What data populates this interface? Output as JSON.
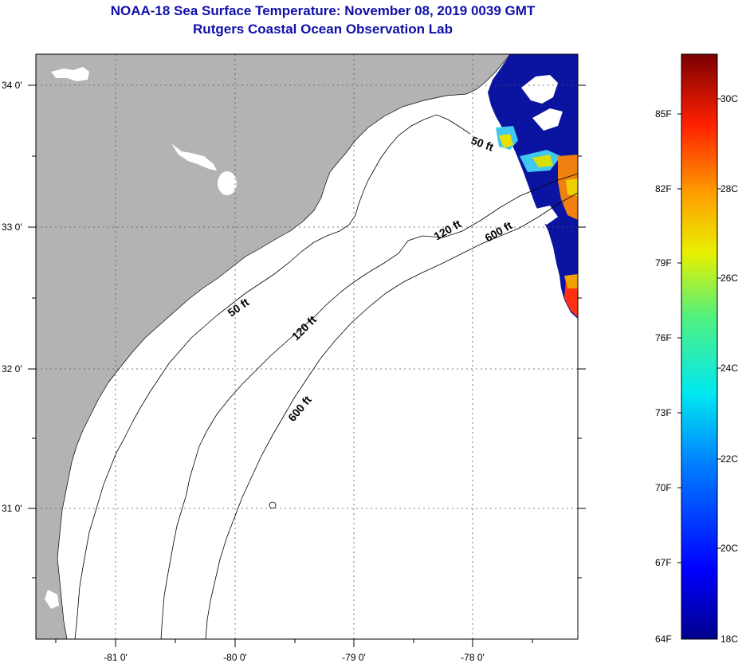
{
  "title": "NOAA-18 Sea Surface Temperature:  November 08, 2019 0039 GMT",
  "subtitle": "Rutgers Coastal Ocean Observation Lab",
  "map": {
    "lat_labels": [
      "34 0'",
      "33 0'",
      "32 0'",
      "31 0'"
    ],
    "lon_labels": [
      "-81 0'",
      "-80 0'",
      "-79 0'",
      "-78 0'"
    ],
    "contours": {
      "c50_north": "50 ft",
      "c50_south": "50 ft",
      "c120_north": "120 ft",
      "c120_south": "120 ft",
      "c600_north": "600 ft",
      "c600_south": "600 ft"
    }
  },
  "legend": {
    "fahrenheit": [
      "85F",
      "82F",
      "79F",
      "76F",
      "73F",
      "70F",
      "67F",
      "64F"
    ],
    "celsius": [
      "30C",
      "28C",
      "26C",
      "24C",
      "22C",
      "20C",
      "18C"
    ]
  },
  "colors": {
    "title": "#1010a8",
    "land": "#b3b3b3",
    "ocean": "#ffffff",
    "sst_cold": "#0a14a0",
    "sst_warm": "#f08010"
  }
}
